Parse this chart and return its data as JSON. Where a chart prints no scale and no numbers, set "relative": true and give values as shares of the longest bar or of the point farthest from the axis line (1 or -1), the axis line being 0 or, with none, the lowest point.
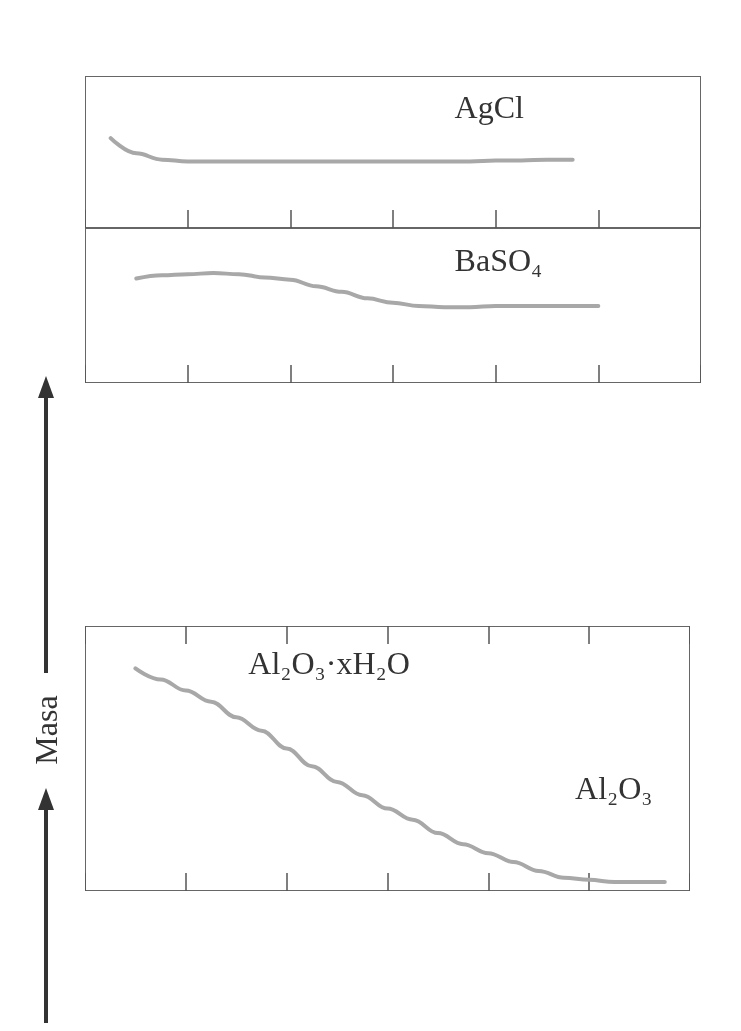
{
  "chart_data": [
    {
      "type": "line",
      "relative": true,
      "categories": [
        null,
        null,
        null,
        null,
        null,
        null,
        null,
        null,
        null,
        null,
        null,
        null,
        null,
        null,
        null,
        null,
        null,
        null,
        null,
        null,
        null,
        null,
        null,
        null,
        null
      ],
      "series": [
        {
          "name": "AgCl",
          "color": "#a8a8a8",
          "values": [
            null,
            1,
            0.83,
            0.76,
            0.74,
            0.74,
            0.74,
            0.74,
            0.74,
            0.74,
            0.74,
            0.74,
            0.74,
            0.74,
            0.74,
            0.74,
            0.75,
            0.75,
            0.76,
            0.76,
            null,
            null,
            null,
            null,
            null
          ]
        }
      ]
    },
    {
      "type": "line",
      "relative": true,
      "categories": [
        null,
        null,
        null,
        null,
        null,
        null,
        null,
        null,
        null,
        null,
        null,
        null,
        null,
        null,
        null,
        null,
        null,
        null,
        null,
        null,
        null,
        null,
        null,
        null,
        null
      ],
      "series": [
        {
          "name": "BaSO₄",
          "color": "#a8a8a8",
          "values": [
            null,
            null,
            0.95,
            0.98,
            0.99,
            1,
            0.99,
            0.96,
            0.94,
            0.88,
            0.83,
            0.77,
            0.73,
            0.7,
            0.69,
            0.69,
            0.7,
            0.7,
            0.7,
            0.7,
            0.7,
            null,
            null,
            null,
            null
          ]
        }
      ]
    },
    {
      "type": "line",
      "relative": true,
      "ylabel": "Masa",
      "categories": [
        null,
        null,
        null,
        null,
        null,
        null,
        null,
        null,
        null,
        null,
        null,
        null,
        null,
        null,
        null,
        null,
        null,
        null,
        null,
        null,
        null,
        null,
        null,
        null,
        null
      ],
      "series": [
        {
          "color": "#a8a8a8",
          "values": [
            null,
            null,
            1,
            0.95,
            0.9,
            0.85,
            0.78,
            0.72,
            0.64,
            0.56,
            0.49,
            0.43,
            0.37,
            0.32,
            0.26,
            0.21,
            0.17,
            0.13,
            0.09,
            0.06,
            0.05,
            0.04,
            0.04,
            0.04,
            null
          ]
        }
      ],
      "annotations": [
        "Al₂O₃·xH₂O",
        "Al₂O₃"
      ]
    }
  ]
}
